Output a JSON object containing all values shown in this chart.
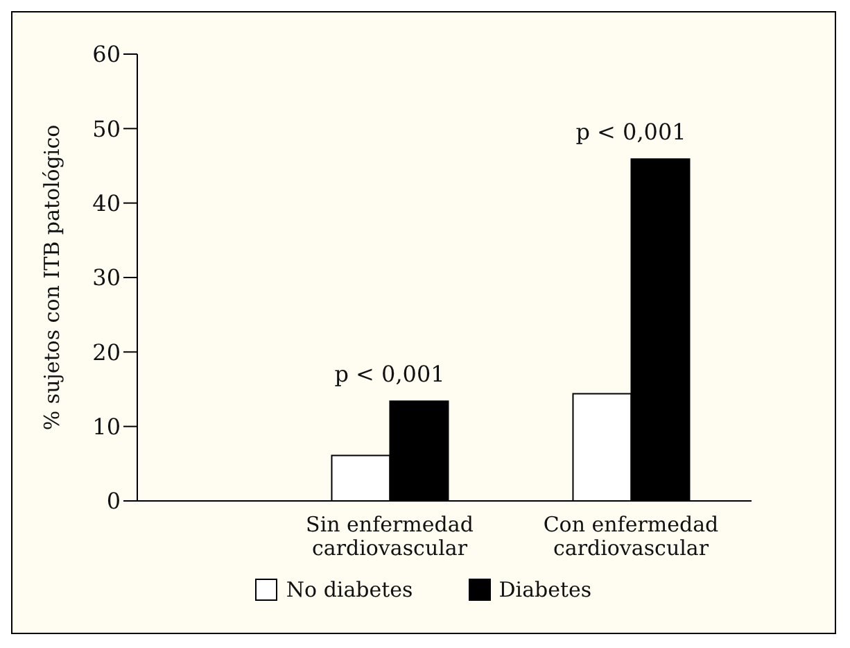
{
  "chart_data": {
    "type": "bar",
    "ylabel": "% sujetos con ITB patológico",
    "categories": [
      "Sin enfermedad\ncardiovascular",
      "Con enfermedad\ncardiovascular"
    ],
    "series": [
      {
        "name": "No diabetes",
        "color": "#ffffff",
        "values": [
          6.1,
          14.4
        ]
      },
      {
        "name": "Diabetes",
        "color": "#000000",
        "values": [
          13.4,
          45.9
        ]
      }
    ],
    "ylim": [
      0,
      60
    ],
    "yticks": [
      0,
      10,
      20,
      30,
      40,
      50,
      60
    ],
    "grid": false,
    "legend": "bottom",
    "annotations": [
      {
        "text": "p < 0,001",
        "x": "Sin enfermedad\ncardiovascular",
        "y": 13.4
      },
      {
        "text": "p < 0,001",
        "x": "Con enfermedad\ncardiovascular",
        "y": 45.9
      }
    ]
  }
}
